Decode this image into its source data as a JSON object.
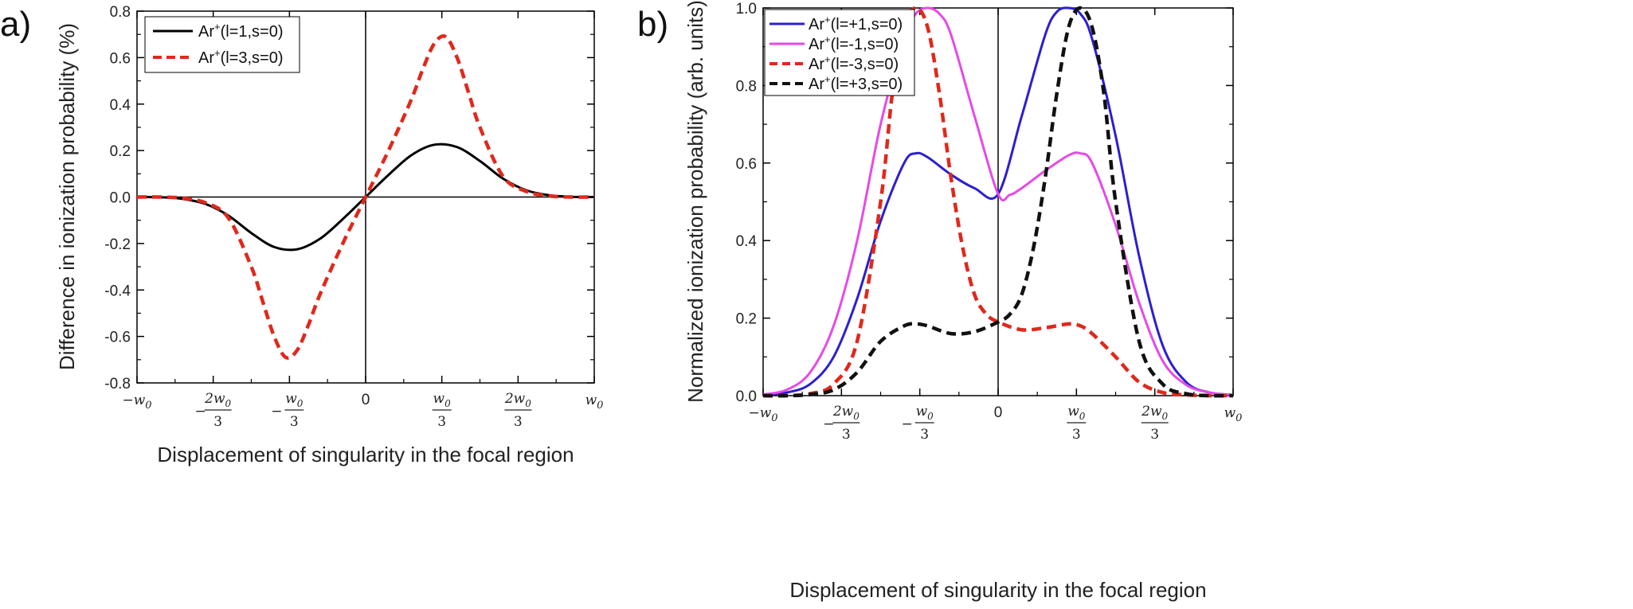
{
  "chart_data": [
    {
      "panel_label": "a)",
      "type": "line",
      "xlabel": "Displacement of singularity in the focal region",
      "ylabel": "Difference in ionization probability (%)",
      "xlim": [
        -1,
        1
      ],
      "ylim": [
        -0.8,
        0.8
      ],
      "yticks": [
        "-0.8",
        "-0.6",
        "-0.4",
        "-0.2",
        "0.0",
        "0.2",
        "0.4",
        "0.6",
        "0.8"
      ],
      "xtick_values": [
        -1,
        -0.6667,
        -0.3333,
        0,
        0.3333,
        0.6667,
        1
      ],
      "legend_position": "top-left",
      "series": [
        {
          "name": "Ar+(l=1,s=0)",
          "legend_base": "Ar",
          "legend_sup": "+",
          "legend_rest": "(l=1,s=0)",
          "color": "#000000",
          "dash": "solid",
          "x": [
            -1,
            -0.9,
            -0.8,
            -0.7,
            -0.6,
            -0.5,
            -0.4,
            -0.3,
            -0.2,
            -0.1,
            0,
            0.1,
            0.2,
            0.3,
            0.4,
            0.5,
            0.6,
            0.7,
            0.8,
            0.9,
            1
          ],
          "y": [
            0,
            -0.001,
            -0.008,
            -0.03,
            -0.08,
            -0.155,
            -0.215,
            -0.225,
            -0.18,
            -0.095,
            0,
            0.095,
            0.18,
            0.225,
            0.215,
            0.155,
            0.08,
            0.03,
            0.008,
            0.001,
            0
          ]
        },
        {
          "name": "Ar+(l=3,s=0)",
          "legend_base": "Ar",
          "legend_sup": "+",
          "legend_rest": "(l=3,s=0)",
          "color": "#e0281c",
          "dash": "dashed",
          "x": [
            -1,
            -0.9,
            -0.8,
            -0.7,
            -0.6,
            -0.5,
            -0.45,
            -0.4,
            -0.35,
            -0.3,
            -0.25,
            -0.2,
            -0.1,
            0,
            0.1,
            0.2,
            0.25,
            0.3,
            0.35,
            0.4,
            0.45,
            0.5,
            0.6,
            0.7,
            0.8,
            0.9,
            1
          ],
          "y": [
            0,
            0,
            -0.005,
            -0.025,
            -0.09,
            -0.3,
            -0.45,
            -0.6,
            -0.69,
            -0.66,
            -0.55,
            -0.42,
            -0.2,
            0,
            0.2,
            0.42,
            0.55,
            0.66,
            0.69,
            0.6,
            0.45,
            0.3,
            0.09,
            0.025,
            0.005,
            0,
            0
          ]
        }
      ]
    },
    {
      "panel_label": "b)",
      "type": "line",
      "xlabel": "Displacement of singularity in the focal region",
      "ylabel": "Normalized ionization probability (arb. units)",
      "xlim": [
        -1,
        1
      ],
      "ylim": [
        0,
        1
      ],
      "yticks": [
        "0.0",
        "0.2",
        "0.4",
        "0.6",
        "0.8",
        "1.0"
      ],
      "xtick_values": [
        -1,
        -0.6667,
        -0.3333,
        0,
        0.3333,
        0.6667,
        1
      ],
      "legend_position": "top-left",
      "series": [
        {
          "name": "Ar+(l=+1,s=0)",
          "legend_base": "Ar",
          "legend_sup": "+",
          "legend_rest": "(l=+1,s=0)",
          "color": "#2b1fd0",
          "dash": "solid",
          "x": [
            -1,
            -0.9,
            -0.8,
            -0.7,
            -0.6,
            -0.5,
            -0.4,
            -0.35,
            -0.3,
            -0.2,
            -0.1,
            0,
            0.1,
            0.2,
            0.25,
            0.3,
            0.35,
            0.4,
            0.5,
            0.6,
            0.7,
            0.8,
            0.9,
            1
          ],
          "y": [
            0.002,
            0.008,
            0.03,
            0.1,
            0.25,
            0.45,
            0.6,
            0.625,
            0.615,
            0.57,
            0.535,
            0.52,
            0.72,
            0.93,
            0.99,
            1.0,
            0.985,
            0.92,
            0.67,
            0.36,
            0.13,
            0.035,
            0.008,
            0.002
          ]
        },
        {
          "name": "Ar+(l=-1,s=0)",
          "legend_base": "Ar",
          "legend_sup": "+",
          "legend_rest": "(l=-1,s=0)",
          "color": "#e64ae6",
          "dash": "solid",
          "x": [
            -1,
            -0.9,
            -0.8,
            -0.7,
            -0.6,
            -0.5,
            -0.4,
            -0.35,
            -0.3,
            -0.25,
            -0.2,
            -0.1,
            0,
            0.05,
            0.1,
            0.2,
            0.3,
            0.35,
            0.4,
            0.5,
            0.6,
            0.7,
            0.8,
            0.9,
            1
          ],
          "y": [
            0.003,
            0.015,
            0.06,
            0.18,
            0.4,
            0.7,
            0.92,
            0.985,
            1.0,
            0.985,
            0.93,
            0.72,
            0.52,
            0.518,
            0.535,
            0.58,
            0.62,
            0.625,
            0.6,
            0.44,
            0.24,
            0.09,
            0.028,
            0.008,
            0.002
          ]
        },
        {
          "name": "Ar+(l=-3,s=0)",
          "legend_base": "Ar",
          "legend_sup": "+",
          "legend_rest": "(l=-3,s=0)",
          "color": "#e0281c",
          "dash": "dashed",
          "x": [
            -1,
            -0.9,
            -0.8,
            -0.7,
            -0.6,
            -0.5,
            -0.45,
            -0.4,
            -0.35,
            -0.3,
            -0.25,
            -0.2,
            -0.15,
            -0.1,
            -0.05,
            0,
            0.1,
            0.2,
            0.3,
            0.35,
            0.4,
            0.5,
            0.6,
            0.7,
            0.8,
            0.9,
            1
          ],
          "y": [
            0,
            0,
            0.005,
            0.03,
            0.14,
            0.5,
            0.78,
            0.95,
            1.0,
            0.95,
            0.78,
            0.56,
            0.38,
            0.26,
            0.21,
            0.19,
            0.17,
            0.175,
            0.185,
            0.18,
            0.16,
            0.1,
            0.035,
            0.008,
            0.002,
            0,
            0
          ]
        },
        {
          "name": "Ar+(l=+3,s=0)",
          "legend_base": "Ar",
          "legend_sup": "+",
          "legend_rest": "(l=+3,s=0)",
          "color": "#111111",
          "dash": "dashed",
          "x": [
            -1,
            -0.9,
            -0.8,
            -0.7,
            -0.6,
            -0.5,
            -0.4,
            -0.35,
            -0.3,
            -0.2,
            -0.1,
            0,
            0.05,
            0.1,
            0.15,
            0.2,
            0.25,
            0.3,
            0.35,
            0.4,
            0.45,
            0.5,
            0.6,
            0.7,
            0.8,
            0.9,
            1
          ],
          "y": [
            0,
            0,
            0.003,
            0.015,
            0.06,
            0.14,
            0.18,
            0.185,
            0.18,
            0.16,
            0.165,
            0.19,
            0.21,
            0.26,
            0.38,
            0.56,
            0.78,
            0.95,
            1.0,
            0.95,
            0.78,
            0.5,
            0.14,
            0.03,
            0.005,
            0,
            0
          ]
        }
      ]
    }
  ],
  "xtick_symbols": {
    "w": "w",
    "sub": "0",
    "neg": "−",
    "zero": "0",
    "two": "2",
    "three": "3"
  }
}
